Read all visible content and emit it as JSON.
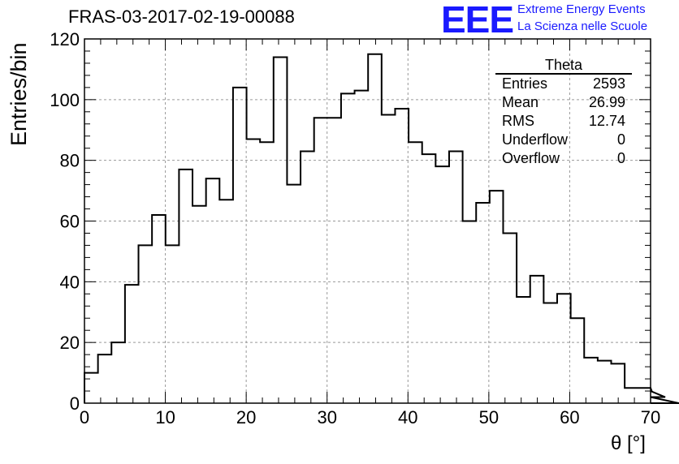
{
  "title": "FRAS-03-2017-02-19-00088",
  "logo": {
    "mark": "EEE",
    "line1": "Extreme Energy Events",
    "line2": "La Scienza nelle Scuole"
  },
  "stats_box": {
    "title": "Theta",
    "rows": [
      {
        "label": "Entries",
        "value": "2593"
      },
      {
        "label": "Mean",
        "value": "26.99"
      },
      {
        "label": "RMS",
        "value": "12.74"
      },
      {
        "label": "Underflow",
        "value": "0"
      },
      {
        "label": "Overflow",
        "value": "0"
      }
    ]
  },
  "chart_data": {
    "type": "bar",
    "style": "step-histogram",
    "xlabel": "θ [°]",
    "ylabel": "Entries/bin",
    "xlim": [
      0,
      70
    ],
    "ylim": [
      0,
      120
    ],
    "bin_width": 1.67,
    "x_ticks": [
      "0",
      "10",
      "20",
      "30",
      "40",
      "50",
      "60",
      "70"
    ],
    "y_ticks": [
      "0",
      "20",
      "40",
      "60",
      "80",
      "100",
      "120"
    ],
    "grid": true,
    "line_color": "#000000",
    "values": [
      10,
      16,
      20,
      39,
      52,
      62,
      52,
      77,
      65,
      74,
      67,
      104,
      87,
      86,
      114,
      72,
      83,
      94,
      94,
      102,
      103,
      115,
      95,
      97,
      86,
      82,
      78,
      83,
      60,
      66,
      70,
      56,
      35,
      42,
      33,
      36,
      28,
      15,
      14,
      13,
      5,
      5,
      4,
      2,
      0,
      0,
      0,
      0,
      0,
      0,
      0,
      0
    ]
  }
}
